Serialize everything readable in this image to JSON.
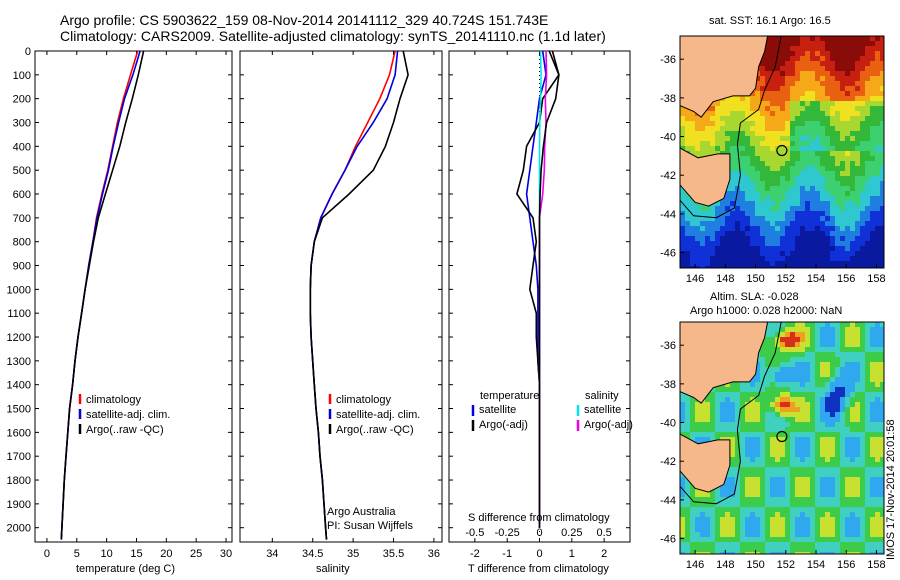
{
  "header": {
    "line1": "Argo profile: CS 5903622_159 08-Nov-2014 20141112_329 40.724S 151.743E",
    "line2": "Climatology: CARS2009. Satellite-adjusted climatology: synTS_20141110.nc (1.1d later)"
  },
  "credits": {
    "org": "Argo Australia",
    "pi": "PI: Susan Wijffels",
    "stamp": "IMOS 17-Nov-2014 20:01:58"
  },
  "colors": {
    "climatology": "#ff0000",
    "satellite": "#0000dd",
    "argo": "#000000",
    "sat_salinity": "#00e5ee",
    "argo_salinity": "#ee00ee"
  },
  "chart_data": [
    {
      "type": "line",
      "panel": "temperature",
      "xlabel": "temperature (deg C)",
      "xlim": [
        -2,
        31
      ],
      "xticks": [
        0,
        5,
        10,
        15,
        20,
        25,
        30
      ],
      "ylim": [
        2060,
        0
      ],
      "yticks": [
        0,
        100,
        200,
        300,
        400,
        500,
        600,
        700,
        800,
        900,
        1000,
        1100,
        1200,
        1300,
        1400,
        1500,
        1600,
        1700,
        1800,
        1900,
        2000
      ],
      "legend": [
        "climatology",
        "satellite-adj. clim.",
        "Argo(..raw -QC)"
      ],
      "series": [
        {
          "name": "climatology",
          "color": "#ff0000",
          "x": [
            15.2,
            14.0,
            12.8,
            11.8,
            11.0,
            10.2,
            9.2,
            8.3,
            7.7,
            7.0,
            6.4,
            5.8,
            5.2,
            4.7,
            4.3,
            3.8,
            3.5,
            3.2,
            2.9,
            2.7,
            2.5,
            2.4
          ],
          "y": [
            0,
            100,
            200,
            300,
            400,
            500,
            600,
            700,
            800,
            900,
            1000,
            1100,
            1200,
            1300,
            1400,
            1500,
            1600,
            1700,
            1800,
            1900,
            2000,
            2050
          ]
        },
        {
          "name": "satellite-adj. clim.",
          "color": "#0000dd",
          "x": [
            15.6,
            14.4,
            13.0,
            12.0,
            11.1,
            10.3,
            9.3,
            8.4,
            7.7,
            7.0,
            6.4,
            5.8,
            5.2,
            4.7,
            4.3,
            3.8,
            3.5,
            3.2,
            2.9,
            2.7,
            2.5,
            2.4
          ],
          "y": [
            0,
            100,
            200,
            300,
            400,
            500,
            600,
            700,
            800,
            900,
            1000,
            1100,
            1200,
            1300,
            1400,
            1500,
            1600,
            1700,
            1800,
            1900,
            2000,
            2050
          ]
        },
        {
          "name": "Argo(..raw -QC)",
          "color": "#000000",
          "x": [
            16.2,
            15.3,
            14.3,
            13.2,
            12.2,
            11.0,
            9.8,
            8.6,
            7.8,
            7.1,
            6.4,
            5.8,
            5.2,
            4.7,
            4.3,
            3.8,
            3.5,
            3.2,
            2.9,
            2.7,
            2.5,
            2.4
          ],
          "y": [
            0,
            100,
            200,
            300,
            400,
            500,
            600,
            700,
            800,
            900,
            1000,
            1100,
            1200,
            1300,
            1400,
            1500,
            1600,
            1700,
            1800,
            1900,
            2000,
            2050
          ]
        }
      ]
    },
    {
      "type": "line",
      "panel": "salinity",
      "xlabel": "salinity",
      "xlim": [
        33.6,
        36.1
      ],
      "xticks": [
        34,
        34.5,
        35,
        35.5,
        36
      ],
      "ylim": [
        2060,
        0
      ],
      "legend": [
        "climatology",
        "satellite-adj. clim.",
        "Argo(..raw -QC)"
      ],
      "series": [
        {
          "name": "climatology",
          "color": "#ff0000",
          "x": [
            35.52,
            35.45,
            35.33,
            35.18,
            35.03,
            34.9,
            34.74,
            34.6,
            34.52,
            34.48,
            34.47,
            34.47,
            34.48,
            34.5,
            34.52,
            34.54,
            34.57,
            34.59,
            34.62,
            34.64,
            34.66,
            34.67
          ],
          "y": [
            0,
            100,
            200,
            300,
            400,
            500,
            600,
            700,
            800,
            900,
            1000,
            1100,
            1200,
            1300,
            1400,
            1500,
            1600,
            1700,
            1800,
            1900,
            2000,
            2050
          ]
        },
        {
          "name": "satellite-adj. clim.",
          "color": "#0000dd",
          "x": [
            35.55,
            35.52,
            35.42,
            35.25,
            35.05,
            34.9,
            34.74,
            34.6,
            34.52,
            34.48,
            34.47,
            34.47,
            34.48,
            34.5,
            34.52,
            34.54,
            34.57,
            34.59,
            34.62,
            34.64,
            34.66,
            34.67
          ],
          "y": [
            0,
            100,
            200,
            300,
            400,
            500,
            600,
            700,
            800,
            900,
            1000,
            1100,
            1200,
            1300,
            1400,
            1500,
            1600,
            1700,
            1800,
            1900,
            2000,
            2050
          ]
        },
        {
          "name": "Argo(..raw -QC)",
          "color": "#000000",
          "x": [
            35.62,
            35.68,
            35.58,
            35.5,
            35.4,
            35.25,
            34.95,
            34.62,
            34.52,
            34.48,
            34.47,
            34.47,
            34.48,
            34.5,
            34.52,
            34.54,
            34.57,
            34.59,
            34.62,
            34.64,
            34.66,
            34.67
          ],
          "y": [
            0,
            100,
            200,
            300,
            400,
            500,
            600,
            700,
            800,
            900,
            1000,
            1100,
            1200,
            1300,
            1400,
            1500,
            1600,
            1700,
            1800,
            1900,
            2000,
            2050
          ]
        }
      ]
    },
    {
      "type": "line",
      "panel": "difference",
      "xlabel": "T difference from climatology",
      "xlabel_top": "S difference from climatology",
      "xlim": [
        -2.8,
        2.8
      ],
      "xticks": [
        -2,
        -1,
        0,
        1,
        2
      ],
      "xticks_top": [
        "-0.5",
        "-0.25",
        "0",
        "0.25",
        "0.5"
      ],
      "ylim": [
        2060,
        0
      ],
      "legend": [
        "temperature",
        "satellite",
        "Argo(-adj)",
        "salinity",
        "satellite",
        "Argo(-adj)"
      ],
      "series": [
        {
          "name": "temperature satellite",
          "color": "#0000dd",
          "x": [
            0.1,
            0.2,
            0.0,
            -0.1,
            -0.2,
            -0.3,
            -0.4,
            -0.3,
            -0.2,
            -0.1,
            -0.05,
            -0.05,
            -0.05,
            -0.05,
            0,
            0,
            0,
            0,
            0,
            0,
            0
          ],
          "y": [
            0,
            100,
            200,
            300,
            400,
            500,
            600,
            700,
            800,
            900,
            1000,
            1100,
            1200,
            1300,
            1400,
            1500,
            1600,
            1700,
            1800,
            1900,
            2000
          ]
        },
        {
          "name": "temperature Argo(-adj)",
          "color": "#000000",
          "x": [
            0.4,
            0.6,
            0.1,
            0.0,
            -0.4,
            -0.5,
            -0.7,
            -0.2,
            -0.1,
            -0.2,
            -0.3,
            -0.1,
            -0.1,
            -0.05,
            0,
            0,
            0,
            0,
            0,
            0,
            0
          ],
          "y": [
            0,
            100,
            200,
            300,
            400,
            500,
            600,
            700,
            800,
            900,
            1000,
            1100,
            1200,
            1300,
            1400,
            1500,
            1600,
            1700,
            1800,
            1900,
            2000
          ]
        },
        {
          "name": "salinity satellite",
          "color": "#00e5ee",
          "x": [
            0.03,
            0.05,
            0.03,
            0.01,
            0.0,
            0.0,
            0.0,
            0.0,
            0.0,
            0.0,
            0.0,
            0.0,
            0.0,
            0.0,
            0.0,
            0.0,
            0.0,
            0.0,
            0.0,
            0.0,
            0.0
          ],
          "y": [
            0,
            100,
            200,
            300,
            400,
            500,
            600,
            700,
            800,
            900,
            1000,
            1100,
            1200,
            1300,
            1400,
            1500,
            1600,
            1700,
            1800,
            1900,
            2000
          ]
        },
        {
          "name": "salinity Argo(-adj)",
          "color": "#ee00ee",
          "x": [
            0.2,
            0.22,
            0.18,
            0.2,
            0.16,
            0.15,
            0.1,
            0.0,
            0.0,
            0.0,
            0.0,
            0.0,
            0.0,
            0.0,
            0.0,
            0.0,
            0.0,
            0.0,
            0.0,
            0.0,
            0.0
          ],
          "y": [
            0,
            100,
            200,
            300,
            400,
            500,
            600,
            700,
            800,
            900,
            1000,
            1100,
            1200,
            1300,
            1400,
            1500,
            1600,
            1700,
            1800,
            1900,
            2000
          ]
        },
        {
          "name": "salinity Argo raw",
          "color": "#000000",
          "x": [
            0.3,
            0.6,
            0.5,
            0.22,
            0.12,
            0.05,
            0.02,
            0.0,
            0.0,
            0.0,
            0.0,
            0.0,
            0.0,
            0.0,
            0.0,
            0.0,
            0.0,
            0.0,
            0.0,
            0.0,
            0.0
          ],
          "y": [
            0,
            100,
            200,
            300,
            400,
            500,
            600,
            700,
            800,
            900,
            1000,
            1100,
            1200,
            1300,
            1400,
            1500,
            1600,
            1700,
            1800,
            1900,
            2000
          ]
        }
      ]
    },
    {
      "type": "heatmap",
      "panel": "map-sst",
      "title": "sat. SST: 16.1  Argo: 16.5",
      "xlim": [
        145,
        158.5
      ],
      "xticks": [
        146,
        148,
        150,
        152,
        154,
        156,
        158
      ],
      "ylim": [
        -46.8,
        -34.8
      ],
      "yticks": [
        -36,
        -38,
        -40,
        -42,
        -44,
        -46
      ],
      "marker": {
        "lon": 151.743,
        "lat": -40.724
      }
    },
    {
      "type": "heatmap",
      "panel": "map-sla",
      "title": "Altim. SLA: -0.028",
      "subtitle": "Argo h1000: 0.028 h2000: NaN",
      "xlim": [
        145,
        158.5
      ],
      "xticks": [
        146,
        148,
        150,
        152,
        154,
        156,
        158
      ],
      "ylim": [
        -46.8,
        -34.8
      ],
      "yticks": [
        -36,
        -38,
        -40,
        -42,
        -44,
        -46
      ],
      "marker": {
        "lon": 151.743,
        "lat": -40.724
      }
    }
  ]
}
